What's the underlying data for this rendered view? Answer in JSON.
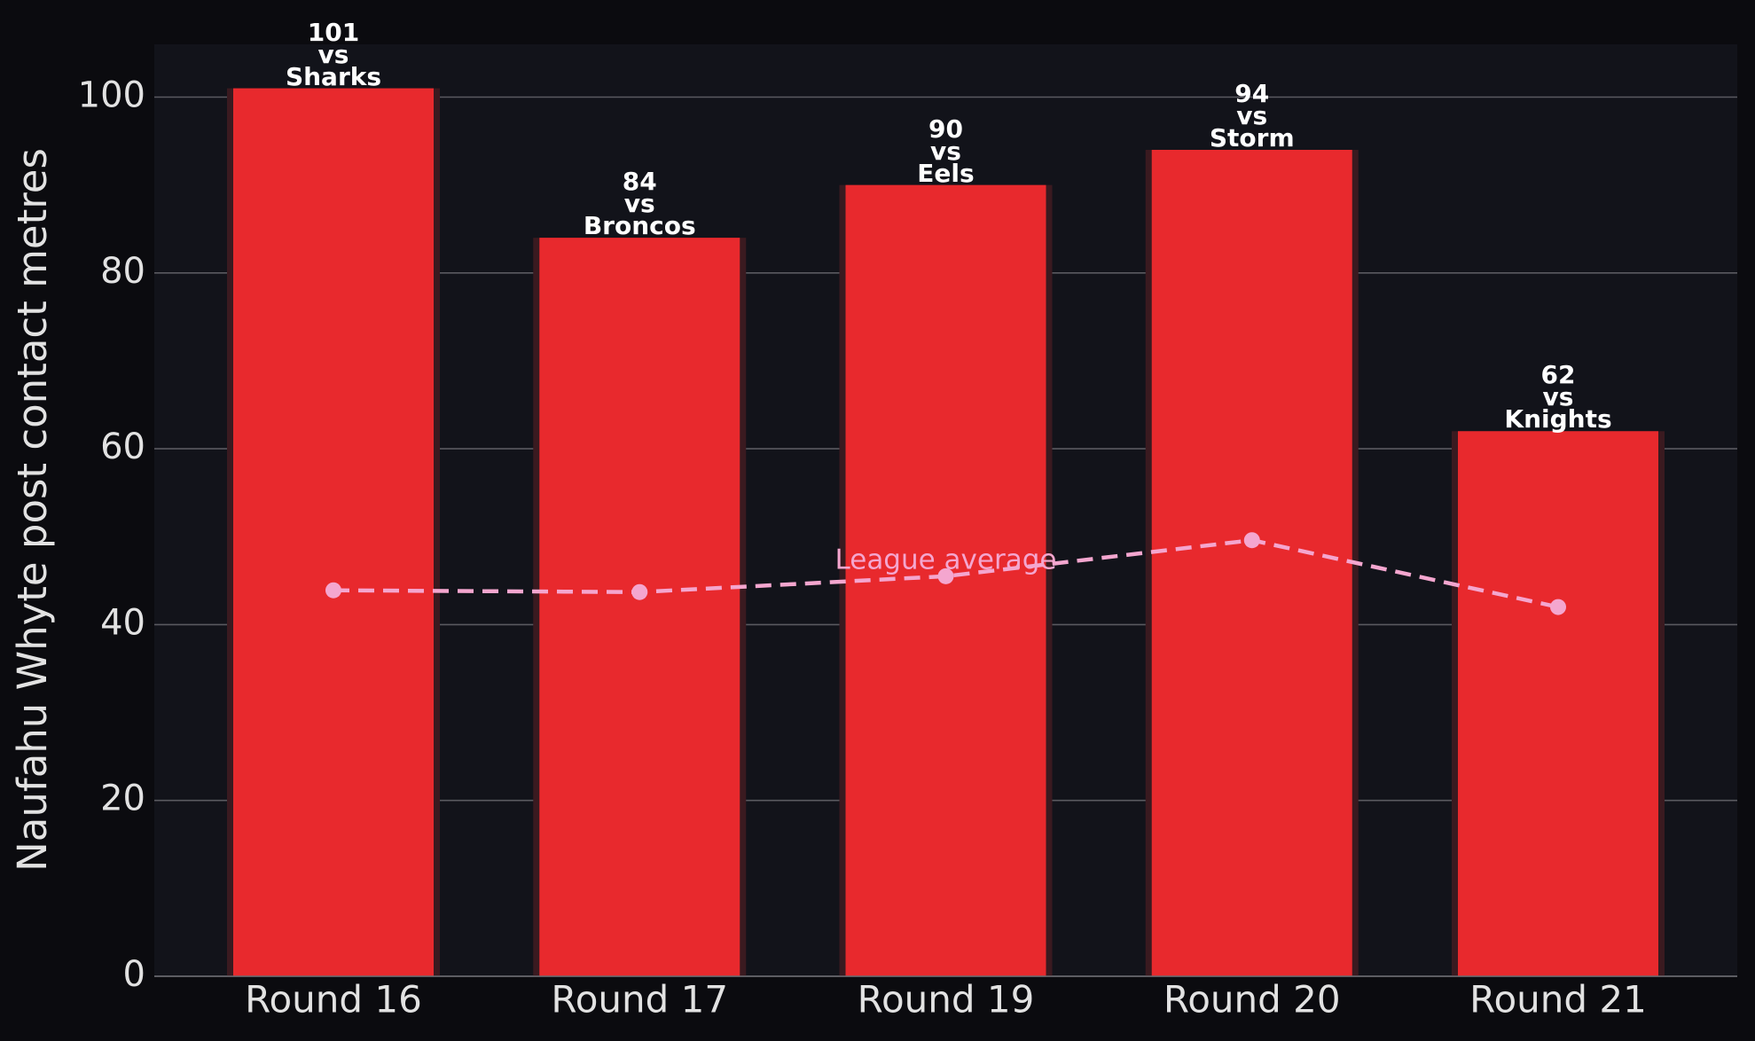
{
  "chart_data": {
    "type": "bar",
    "y_label": "Naufahu Whyte post contact metres",
    "categories": [
      "Round 16",
      "Round 17",
      "Round 19",
      "Round 20",
      "Round 21"
    ],
    "values": [
      101,
      84,
      90,
      94,
      62
    ],
    "value_labels": [
      "101\nvs\nSharks",
      "84\nvs\nBroncos",
      "90\nvs\nEels",
      "94\nvs\nStorm",
      "62\nvs\nKnights"
    ],
    "color": "#e8292d",
    "average": {
      "name": "League average",
      "color": "#f4a6cf",
      "values": [
        43.9,
        43.7,
        45.5,
        49.6,
        42.0
      ]
    },
    "ylim": [
      0,
      106
    ],
    "yticks": [
      0,
      20,
      40,
      60,
      80,
      100
    ],
    "grid": true
  }
}
